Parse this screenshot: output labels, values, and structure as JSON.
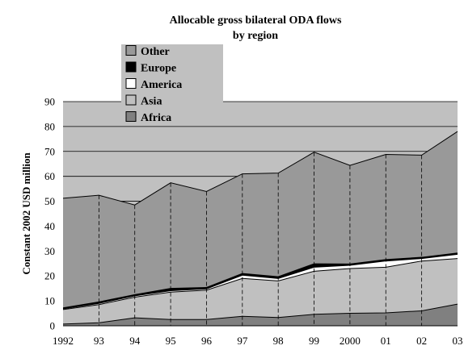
{
  "chart_data": {
    "type": "area",
    "title": "Allocable gross bilateral ODA flows",
    "subtitle": "by region",
    "ylabel": "Constant 2002 USD million",
    "xlabel": "",
    "categories": [
      "1992",
      "93",
      "94",
      "95",
      "96",
      "97",
      "98",
      "99",
      "2000",
      "01",
      "02",
      "03"
    ],
    "ylim": [
      0,
      90
    ],
    "yticks": [
      0,
      10,
      20,
      30,
      40,
      50,
      60,
      70,
      80,
      90
    ],
    "stacked": true,
    "grid": "horizontal",
    "legend_position": "top-left",
    "series": [
      {
        "name": "Africa",
        "color": "#808080",
        "values": [
          0.7,
          1.2,
          3.2,
          2.5,
          2.5,
          3.8,
          3.3,
          4.6,
          5.0,
          5.2,
          6.0,
          8.7
        ]
      },
      {
        "name": "Asia",
        "color": "#c0c0c0",
        "values": [
          5.8,
          7.3,
          8.3,
          11.0,
          11.8,
          15.2,
          14.7,
          17.3,
          18.0,
          18.3,
          20.0,
          18.3
        ]
      },
      {
        "name": "America",
        "color": "#ffffff",
        "values": [
          0.3,
          0.5,
          0.5,
          0.6,
          0.5,
          1.3,
          1.0,
          1.6,
          1.3,
          2.5,
          1.0,
          1.7
        ]
      },
      {
        "name": "Europe",
        "color": "#000000",
        "values": [
          0.4,
          0.6,
          0.5,
          0.9,
          0.6,
          0.7,
          0.7,
          1.4,
          0.5,
          0.6,
          0.5,
          0.5
        ]
      },
      {
        "name": "Other",
        "color": "#999999",
        "values": [
          44.0,
          42.8,
          36.0,
          42.4,
          38.5,
          40.0,
          41.6,
          44.8,
          39.6,
          42.2,
          41.0,
          48.8
        ]
      }
    ]
  }
}
